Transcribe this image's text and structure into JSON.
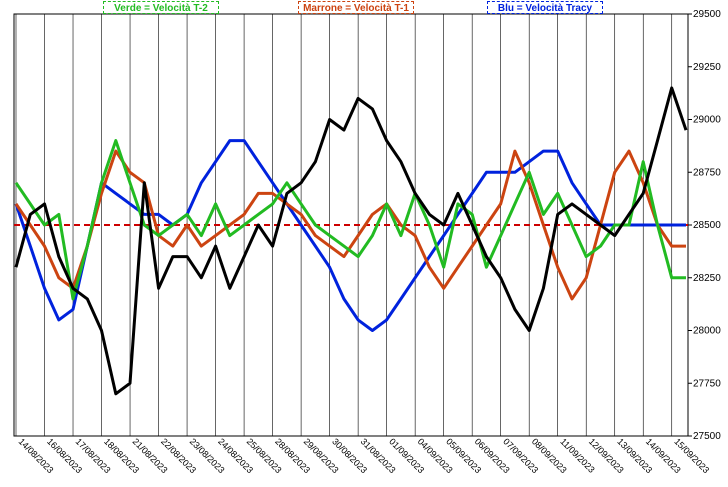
{
  "chart_data": {
    "type": "line",
    "title": "",
    "xlabel": "",
    "ylabel": "",
    "ylim": [
      27500,
      29500
    ],
    "y_ticks": [
      27500,
      27750,
      28000,
      28250,
      28500,
      28750,
      29000,
      29250,
      29500
    ],
    "y_tick_labels": [
      "27500",
      "27750",
      "28000",
      "28250",
      "28500",
      "28750",
      "29000",
      "29250",
      "29500"
    ],
    "x_tick_labels": [
      "14/08/2023",
      "16/08/2023",
      "17/08/2023",
      "18/08/2023",
      "21/08/2023",
      "22/08/2023",
      "23/08/2023",
      "24/08/2023",
      "25/08/2023",
      "28/08/2023",
      "29/08/2023",
      "30/08/2023",
      "31/08/2023",
      "01/09/2023",
      "04/09/2023",
      "05/09/2023",
      "06/09/2023",
      "07/09/2023",
      "08/09/2023",
      "11/09/2023",
      "12/09/2023",
      "13/09/2023",
      "14/09/2023",
      "15/09/2023"
    ],
    "grid": "vertical",
    "legend_position": "top",
    "reference_line": {
      "value": 28500,
      "color": "#cc0000",
      "style": "dashed"
    },
    "colors": {
      "price": "#000000",
      "green": "#22bb22",
      "red": "#cc4411",
      "blue": "#0022dd"
    },
    "legend": [
      {
        "label": "Verde = Velocità T-2",
        "color": "#22bb22"
      },
      {
        "label": "Marrone = Velocità T-1",
        "color": "#cc4411"
      },
      {
        "label": "Blu = Velocità Tracy",
        "color": "#0022dd"
      }
    ],
    "x": [
      0,
      0.5,
      1,
      1.5,
      2,
      2.5,
      3,
      3.5,
      4,
      4.5,
      5,
      5.5,
      6,
      6.5,
      7,
      7.5,
      8,
      8.5,
      9,
      9.5,
      10,
      10.5,
      11,
      11.5,
      12,
      12.5,
      13,
      13.5,
      14,
      14.5,
      15,
      15.5,
      16,
      16.5,
      17,
      17.5,
      18,
      18.5,
      19,
      19.5,
      20,
      20.5,
      21,
      21.5,
      22,
      22.5,
      23,
      23.5
    ],
    "series": [
      {
        "key": "price",
        "values": [
          28300,
          28550,
          28600,
          28350,
          28200,
          28150,
          28000,
          27700,
          27750,
          28700,
          28200,
          28350,
          28350,
          28250,
          28400,
          28200,
          28350,
          28500,
          28400,
          28650,
          28700,
          28800,
          29000,
          28950,
          29100,
          29050,
          28900,
          28800,
          28650,
          28550,
          28500,
          28650,
          28500,
          28350,
          28250,
          28100,
          28000,
          28200,
          28550,
          28600,
          28550,
          28500,
          28450,
          28550,
          28650,
          28900,
          29150,
          28950
        ]
      },
      {
        "key": "green",
        "values": [
          28700,
          28600,
          28500,
          28550,
          28150,
          28400,
          28700,
          28900,
          28700,
          28500,
          28450,
          28500,
          28550,
          28450,
          28600,
          28450,
          28500,
          28550,
          28600,
          28700,
          28600,
          28500,
          28450,
          28400,
          28350,
          28450,
          28600,
          28450,
          28650,
          28500,
          28300,
          28600,
          28550,
          28300,
          28450,
          28600,
          28750,
          28550,
          28650,
          28500,
          28350,
          28400,
          28500,
          28500,
          28800,
          28500,
          28250,
          28250
        ]
      },
      {
        "key": "red",
        "values": [
          28600,
          28500,
          28400,
          28250,
          28200,
          28400,
          28650,
          28850,
          28750,
          28700,
          28450,
          28400,
          28500,
          28400,
          28450,
          28500,
          28550,
          28650,
          28650,
          28600,
          28550,
          28450,
          28400,
          28350,
          28450,
          28550,
          28600,
          28500,
          28450,
          28300,
          28200,
          28300,
          28400,
          28500,
          28600,
          28850,
          28700,
          28500,
          28300,
          28150,
          28250,
          28500,
          28750,
          28850,
          28700,
          28500,
          28400,
          28400
        ]
      },
      {
        "key": "blue",
        "values": [
          28600,
          28400,
          28200,
          28050,
          28100,
          28400,
          28700,
          28650,
          28600,
          28550,
          28550,
          28500,
          28550,
          28700,
          28800,
          28900,
          28900,
          28800,
          28700,
          28600,
          28500,
          28400,
          28300,
          28150,
          28050,
          28000,
          28050,
          28150,
          28250,
          28350,
          28450,
          28550,
          28650,
          28750,
          28750,
          28750,
          28800,
          28850,
          28850,
          28700,
          28600,
          28500,
          28500,
          28500,
          28500,
          28500,
          28500,
          28500
        ]
      }
    ]
  }
}
